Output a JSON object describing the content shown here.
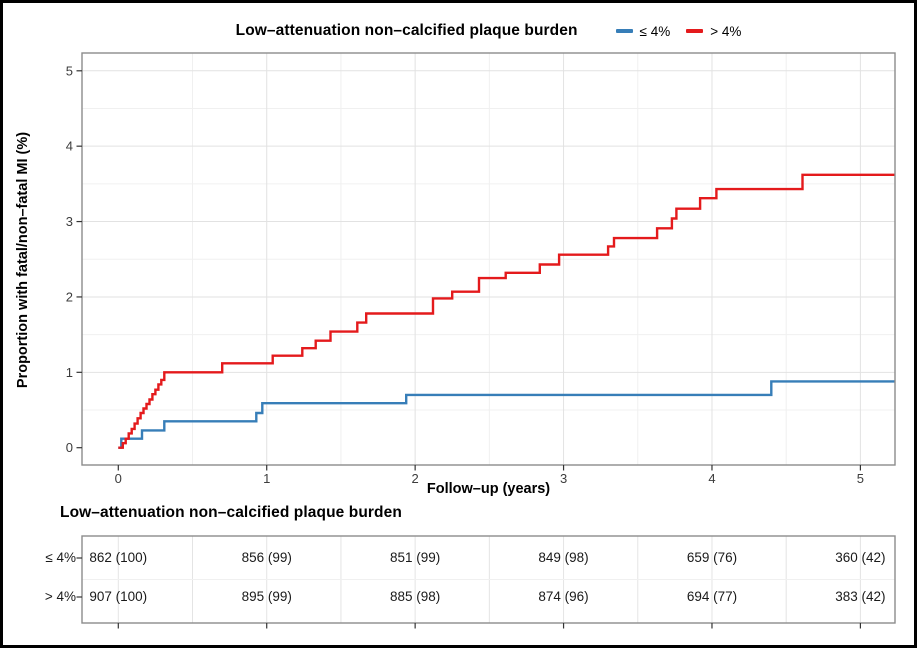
{
  "header": {
    "title": "Low–attenuation non–calcified plaque burden",
    "legend": [
      {
        "label": "≤ 4%",
        "color": "#377EB8"
      },
      {
        "label": "> 4%",
        "color": "#E41A1C"
      }
    ]
  },
  "colors": {
    "le4_blue": "#377EB8",
    "gt4_red": "#E41A1C",
    "grid_major": "#e2e2e2",
    "grid_minor": "#f0f0f0",
    "panel_border": "#8c8c8c",
    "tick": "#333333"
  },
  "chart_data": {
    "type": "line",
    "subtype": "step-function cumulative incidence (Kaplan–Meier)",
    "title": "Low–attenuation non–calcified plaque burden",
    "xlabel": "Follow–up (years)",
    "ylabel": "Proportion with fatal/non–fatal MI (%)",
    "xlim": [
      -0.25,
      5.35
    ],
    "ylim": [
      -0.15,
      5.2
    ],
    "x_ticks": [
      0,
      1,
      2,
      3,
      4,
      5
    ],
    "y_ticks": [
      0,
      1,
      2,
      3,
      4,
      5
    ],
    "grid": "major gridlines at integers, minor at 0.5 steps, light gray on white",
    "legend_position": "top, right of title",
    "series": [
      {
        "name": "≤ 4%",
        "color": "#377EB8",
        "steps": [
          [
            0,
            0
          ],
          [
            0.02,
            0.12
          ],
          [
            0.16,
            0.23
          ],
          [
            0.31,
            0.35
          ],
          [
            0.93,
            0.46
          ],
          [
            0.97,
            0.59
          ],
          [
            1.94,
            0.7
          ],
          [
            4.4,
            0.88
          ],
          [
            5.23,
            0.88
          ]
        ]
      },
      {
        "name": "> 4%",
        "color": "#E41A1C",
        "steps": [
          [
            0,
            0
          ],
          [
            0.03,
            0.06
          ],
          [
            0.05,
            0.12
          ],
          [
            0.07,
            0.19
          ],
          [
            0.09,
            0.25
          ],
          [
            0.11,
            0.32
          ],
          [
            0.13,
            0.39
          ],
          [
            0.15,
            0.46
          ],
          [
            0.17,
            0.52
          ],
          [
            0.19,
            0.58
          ],
          [
            0.21,
            0.64
          ],
          [
            0.23,
            0.71
          ],
          [
            0.25,
            0.77
          ],
          [
            0.27,
            0.84
          ],
          [
            0.29,
            0.9
          ],
          [
            0.31,
            1.0
          ],
          [
            0.7,
            1.12
          ],
          [
            1.04,
            1.22
          ],
          [
            1.24,
            1.32
          ],
          [
            1.33,
            1.42
          ],
          [
            1.43,
            1.54
          ],
          [
            1.61,
            1.66
          ],
          [
            1.67,
            1.78
          ],
          [
            2.12,
            1.98
          ],
          [
            2.25,
            2.07
          ],
          [
            2.43,
            2.25
          ],
          [
            2.61,
            2.32
          ],
          [
            2.84,
            2.43
          ],
          [
            2.97,
            2.56
          ],
          [
            3.3,
            2.67
          ],
          [
            3.34,
            2.78
          ],
          [
            3.63,
            2.91
          ],
          [
            3.73,
            3.04
          ],
          [
            3.76,
            3.17
          ],
          [
            3.92,
            3.31
          ],
          [
            4.03,
            3.43
          ],
          [
            4.61,
            3.62
          ],
          [
            5.23,
            3.62
          ]
        ]
      }
    ]
  },
  "risk_table": {
    "title": "Low–attenuation non–calcified plaque burden",
    "years": [
      0,
      1,
      2,
      3,
      4,
      5
    ],
    "rows": [
      {
        "label": "≤ 4%",
        "values": [
          "862 (100)",
          "856 (99)",
          "851 (99)",
          "849 (98)",
          "659 (76)",
          "360 (42)"
        ]
      },
      {
        "label": "> 4%",
        "values": [
          "907 (100)",
          "895 (99)",
          "885 (98)",
          "874 (96)",
          "694 (77)",
          "383 (42)"
        ]
      }
    ]
  }
}
